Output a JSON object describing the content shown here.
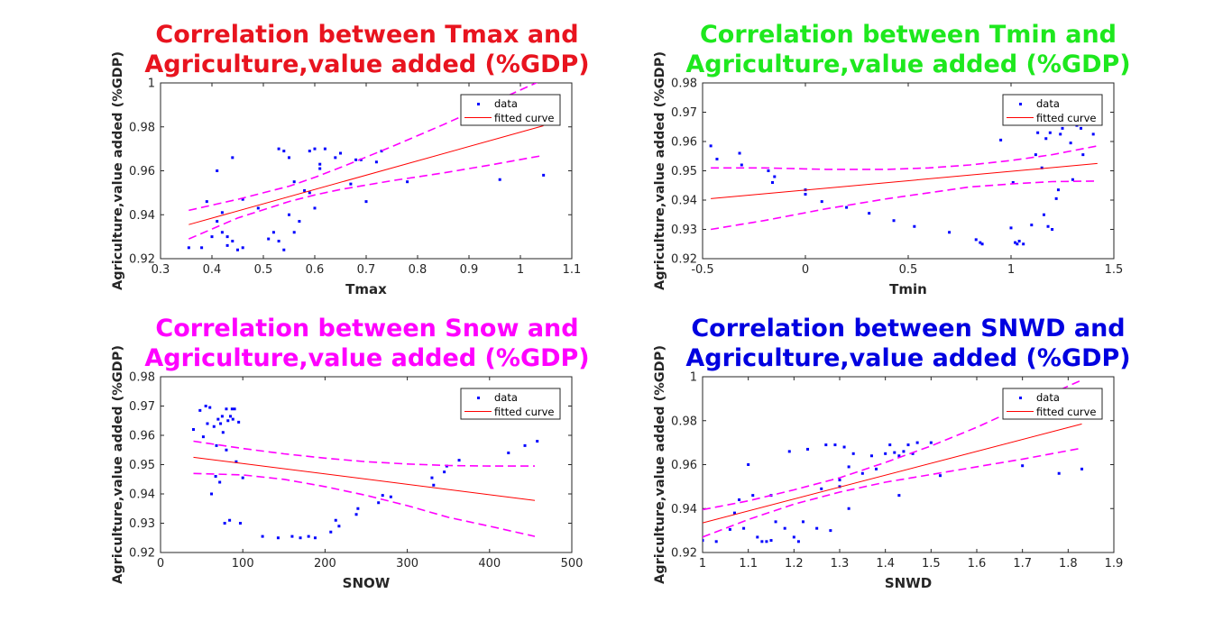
{
  "chart_data": [
    {
      "type": "scatter",
      "title_line1": "Correlation between Tmax and",
      "title_line2": "Agriculture,value added (%GDP)",
      "title_color": "#e8141f",
      "xlabel": "Tmax",
      "ylabel": "Agriculture,value added (%GDP)",
      "xlim": [
        0.3,
        1.1
      ],
      "ylim": [
        0.92,
        1.0
      ],
      "xticks": [
        0.3,
        0.4,
        0.5,
        0.6,
        0.7,
        0.8,
        0.9,
        1.0,
        1.1
      ],
      "xtick_labels": [
        "0.3",
        "0.4",
        "0.5",
        "0.6",
        "0.7",
        "0.8",
        "0.9",
        "1",
        "1.1"
      ],
      "yticks": [
        0.92,
        0.94,
        0.96,
        0.98,
        1.0
      ],
      "ytick_labels": [
        "0.92",
        "0.94",
        "0.96",
        "0.98",
        "1"
      ],
      "legend": [
        "data",
        "fitted curve"
      ],
      "legend_position": "top-right",
      "series": [
        {
          "name": "data",
          "style": "points",
          "color": "#0000ff",
          "x": [
            0.355,
            0.38,
            0.39,
            0.4,
            0.41,
            0.41,
            0.42,
            0.42,
            0.43,
            0.43,
            0.44,
            0.44,
            0.45,
            0.46,
            0.46,
            0.49,
            0.51,
            0.52,
            0.53,
            0.53,
            0.54,
            0.54,
            0.55,
            0.55,
            0.56,
            0.56,
            0.57,
            0.58,
            0.59,
            0.59,
            0.6,
            0.6,
            0.61,
            0.61,
            0.62,
            0.64,
            0.65,
            0.67,
            0.68,
            0.69,
            0.7,
            0.72,
            0.73,
            0.78,
            0.96,
            1.045
          ],
          "y": [
            0.925,
            0.925,
            0.946,
            0.93,
            0.937,
            0.96,
            0.932,
            0.941,
            0.93,
            0.926,
            0.928,
            0.966,
            0.924,
            0.947,
            0.925,
            0.943,
            0.929,
            0.932,
            0.97,
            0.928,
            0.969,
            0.924,
            0.966,
            0.94,
            0.932,
            0.955,
            0.937,
            0.951,
            0.969,
            0.95,
            0.97,
            0.943,
            0.961,
            0.963,
            0.97,
            0.966,
            0.968,
            0.954,
            0.965,
            0.965,
            0.946,
            0.964,
            0.969,
            0.955,
            0.956,
            0.958
          ]
        },
        {
          "name": "fitted curve",
          "style": "line",
          "color": "#ff0000",
          "x": [
            0.355,
            1.045
          ],
          "y": [
            0.9355,
            0.9805
          ]
        },
        {
          "name": "upper bound",
          "style": "dashed",
          "color": "#ff00ff",
          "x": [
            0.355,
            0.45,
            0.55,
            0.6,
            0.65,
            0.75,
            0.85,
            0.95,
            1.045
          ],
          "y": [
            0.942,
            0.947,
            0.953,
            0.957,
            0.9615,
            0.971,
            0.981,
            0.9915,
            1.0015
          ]
        },
        {
          "name": "lower bound",
          "style": "dashed",
          "color": "#ff00ff",
          "x": [
            0.355,
            0.45,
            0.55,
            0.6,
            0.65,
            0.75,
            0.85,
            0.95,
            1.045
          ],
          "y": [
            0.929,
            0.9385,
            0.946,
            0.949,
            0.9515,
            0.9555,
            0.959,
            0.963,
            0.967
          ]
        }
      ]
    },
    {
      "type": "scatter",
      "title_line1": "Correlation between Tmin and",
      "title_line2": "Agriculture,value added (%GDP)",
      "title_color": "#1ee81e",
      "xlabel": "Tmin",
      "ylabel": "Agriculture,value added (%GDP)",
      "xlim": [
        -0.5,
        1.5
      ],
      "ylim": [
        0.92,
        0.98
      ],
      "xticks": [
        -0.5,
        0,
        0.5,
        1,
        1.5
      ],
      "xtick_labels": [
        "-0.5",
        "0",
        "0.5",
        "1",
        "1.5"
      ],
      "yticks": [
        0.92,
        0.93,
        0.94,
        0.95,
        0.96,
        0.97,
        0.98
      ],
      "ytick_labels": [
        "0.92",
        "0.93",
        "0.94",
        "0.95",
        "0.96",
        "0.97",
        "0.98"
      ],
      "legend": [
        "data",
        "fitted curve"
      ],
      "legend_position": "top-right",
      "series": [
        {
          "name": "data",
          "style": "points",
          "color": "#0000ff",
          "x": [
            -0.46,
            -0.43,
            -0.32,
            -0.31,
            -0.18,
            -0.16,
            -0.15,
            0.0,
            0.0,
            0.08,
            0.2,
            0.31,
            0.43,
            0.53,
            0.7,
            0.83,
            0.85,
            0.86,
            0.95,
            1.0,
            1.01,
            1.02,
            1.03,
            1.04,
            1.06,
            1.1,
            1.12,
            1.13,
            1.15,
            1.16,
            1.17,
            1.18,
            1.19,
            1.2,
            1.22,
            1.23,
            1.24,
            1.25,
            1.27,
            1.29,
            1.3,
            1.32,
            1.34,
            1.35,
            1.4
          ],
          "y": [
            0.9585,
            0.954,
            0.956,
            0.952,
            0.95,
            0.946,
            0.948,
            0.942,
            0.9435,
            0.9395,
            0.9375,
            0.9355,
            0.933,
            0.931,
            0.929,
            0.9265,
            0.9255,
            0.925,
            0.9605,
            0.9305,
            0.946,
            0.9255,
            0.925,
            0.926,
            0.925,
            0.9315,
            0.9555,
            0.963,
            0.951,
            0.935,
            0.961,
            0.931,
            0.963,
            0.93,
            0.9405,
            0.9435,
            0.9625,
            0.9645,
            0.9665,
            0.9595,
            0.947,
            0.9655,
            0.9645,
            0.9555,
            0.9625
          ]
        },
        {
          "name": "fitted curve",
          "style": "line",
          "color": "#ff0000",
          "x": [
            -0.46,
            1.42
          ],
          "y": [
            0.9405,
            0.9525
          ]
        },
        {
          "name": "upper bound",
          "style": "dashed",
          "color": "#ff00ff",
          "x": [
            -0.46,
            -0.2,
            0.1,
            0.4,
            0.6,
            0.8,
            1.0,
            1.2,
            1.42
          ],
          "y": [
            0.951,
            0.951,
            0.9505,
            0.9505,
            0.951,
            0.952,
            0.9535,
            0.9555,
            0.9585
          ]
        },
        {
          "name": "lower bound",
          "style": "dashed",
          "color": "#ff00ff",
          "x": [
            -0.46,
            -0.2,
            0.1,
            0.4,
            0.6,
            0.8,
            1.0,
            1.2,
            1.42
          ],
          "y": [
            0.93,
            0.933,
            0.937,
            0.9405,
            0.9425,
            0.9445,
            0.9455,
            0.9463,
            0.9465
          ]
        }
      ]
    },
    {
      "type": "scatter",
      "title_line1": "Correlation between Snow and",
      "title_line2": "Agriculture,value added (%GDP)",
      "title_color": "#ff00ff",
      "xlabel": "SNOW",
      "ylabel": "Agriculture,value added (%GDP)",
      "xlim": [
        0,
        500
      ],
      "ylim": [
        0.92,
        0.98
      ],
      "xticks": [
        0,
        100,
        200,
        300,
        400,
        500
      ],
      "xtick_labels": [
        "0",
        "100",
        "200",
        "300",
        "400",
        "500"
      ],
      "yticks": [
        0.92,
        0.93,
        0.94,
        0.95,
        0.96,
        0.97,
        0.98
      ],
      "ytick_labels": [
        "0.92",
        "0.93",
        "0.94",
        "0.95",
        "0.96",
        "0.97",
        "0.98"
      ],
      "legend": [
        "data",
        "fitted curve"
      ],
      "legend_position": "top-right",
      "series": [
        {
          "name": "data",
          "style": "points",
          "color": "#0000ff",
          "x": [
            40,
            48,
            52,
            55,
            57,
            60,
            62,
            65,
            67,
            68,
            70,
            72,
            73,
            75,
            76,
            78,
            80,
            80,
            82,
            84,
            85,
            87,
            88,
            90,
            92,
            95,
            97,
            100,
            124,
            143,
            160,
            170,
            180,
            188,
            207,
            213,
            217,
            238,
            240,
            265,
            270,
            280,
            330,
            332,
            345,
            348,
            363,
            423,
            443,
            458
          ],
          "y": [
            0.962,
            0.9685,
            0.9595,
            0.97,
            0.964,
            0.9695,
            0.94,
            0.963,
            0.946,
            0.9565,
            0.9655,
            0.944,
            0.964,
            0.9665,
            0.961,
            0.93,
            0.955,
            0.969,
            0.965,
            0.931,
            0.9665,
            0.969,
            0.9655,
            0.969,
            0.951,
            0.9645,
            0.93,
            0.9455,
            0.9255,
            0.925,
            0.9255,
            0.925,
            0.9255,
            0.925,
            0.927,
            0.931,
            0.929,
            0.933,
            0.935,
            0.937,
            0.9395,
            0.939,
            0.9455,
            0.943,
            0.9475,
            0.9495,
            0.9515,
            0.954,
            0.9565,
            0.958
          ]
        },
        {
          "name": "fitted curve",
          "style": "line",
          "color": "#ff0000",
          "x": [
            40,
            455
          ],
          "y": [
            0.9525,
            0.9378
          ]
        },
        {
          "name": "upper bound",
          "style": "dashed",
          "color": "#ff00ff",
          "x": [
            40,
            100,
            150,
            200,
            250,
            300,
            350,
            400,
            455
          ],
          "y": [
            0.958,
            0.9555,
            0.9537,
            0.9522,
            0.951,
            0.9502,
            0.9497,
            0.9495,
            0.9495
          ]
        },
        {
          "name": "lower bound",
          "style": "dashed",
          "color": "#ff00ff",
          "x": [
            40,
            100,
            150,
            200,
            250,
            300,
            350,
            400,
            455
          ],
          "y": [
            0.947,
            0.9465,
            0.945,
            0.9425,
            0.9395,
            0.936,
            0.932,
            0.929,
            0.9255
          ]
        }
      ]
    },
    {
      "type": "scatter",
      "title_line1": "Correlation between SNWD and",
      "title_line2": "Agriculture,value added (%GDP)",
      "title_color": "#0000e0",
      "xlabel": "SNWD",
      "ylabel": "Agriculture,value added (%GDP)",
      "xlim": [
        1,
        1.9
      ],
      "ylim": [
        0.92,
        1.0
      ],
      "xticks": [
        1.0,
        1.1,
        1.2,
        1.3,
        1.4,
        1.5,
        1.6,
        1.7,
        1.8,
        1.9
      ],
      "xtick_labels": [
        "1",
        "1.1",
        "1.2",
        "1.3",
        "1.4",
        "1.5",
        "1.6",
        "1.7",
        "1.8",
        "1.9"
      ],
      "yticks": [
        0.92,
        0.94,
        0.96,
        0.98,
        1.0
      ],
      "ytick_labels": [
        "0.92",
        "0.94",
        "0.96",
        "0.98",
        "1"
      ],
      "legend": [
        "data",
        "fitted curve"
      ],
      "legend_position": "top-right",
      "series": [
        {
          "name": "data",
          "style": "points",
          "color": "#0000ff",
          "x": [
            1.0,
            1.03,
            1.06,
            1.07,
            1.08,
            1.09,
            1.1,
            1.11,
            1.12,
            1.13,
            1.14,
            1.15,
            1.15,
            1.16,
            1.18,
            1.19,
            1.2,
            1.21,
            1.22,
            1.23,
            1.25,
            1.26,
            1.27,
            1.28,
            1.29,
            1.3,
            1.3,
            1.31,
            1.32,
            1.32,
            1.33,
            1.35,
            1.37,
            1.38,
            1.4,
            1.41,
            1.42,
            1.43,
            1.43,
            1.44,
            1.45,
            1.46,
            1.47,
            1.5,
            1.52,
            1.7,
            1.78,
            1.83
          ],
          "y": [
            0.9255,
            0.925,
            0.9305,
            0.938,
            0.944,
            0.931,
            0.96,
            0.946,
            0.927,
            0.925,
            0.925,
            0.946,
            0.9255,
            0.934,
            0.931,
            0.966,
            0.927,
            0.925,
            0.934,
            0.967,
            0.931,
            0.949,
            0.969,
            0.93,
            0.969,
            0.95,
            0.953,
            0.968,
            0.94,
            0.959,
            0.965,
            0.956,
            0.964,
            0.958,
            0.965,
            0.969,
            0.9655,
            0.946,
            0.964,
            0.966,
            0.969,
            0.965,
            0.97,
            0.97,
            0.955,
            0.9595,
            0.956,
            0.958
          ]
        },
        {
          "name": "fitted curve",
          "style": "line",
          "color": "#ff0000",
          "x": [
            1.0,
            1.83
          ],
          "y": [
            0.9335,
            0.9785
          ]
        },
        {
          "name": "upper bound",
          "style": "dashed",
          "color": "#ff00ff",
          "x": [
            1.0,
            1.1,
            1.2,
            1.3,
            1.4,
            1.5,
            1.6,
            1.7,
            1.83
          ],
          "y": [
            0.9395,
            0.9435,
            0.9485,
            0.954,
            0.961,
            0.9685,
            0.977,
            0.9865,
            0.9985
          ]
        },
        {
          "name": "lower bound",
          "style": "dashed",
          "color": "#ff00ff",
          "x": [
            1.0,
            1.1,
            1.2,
            1.3,
            1.4,
            1.5,
            1.6,
            1.7,
            1.83
          ],
          "y": [
            0.927,
            0.935,
            0.942,
            0.9475,
            0.952,
            0.9555,
            0.959,
            0.9625,
            0.9675
          ]
        }
      ]
    }
  ]
}
